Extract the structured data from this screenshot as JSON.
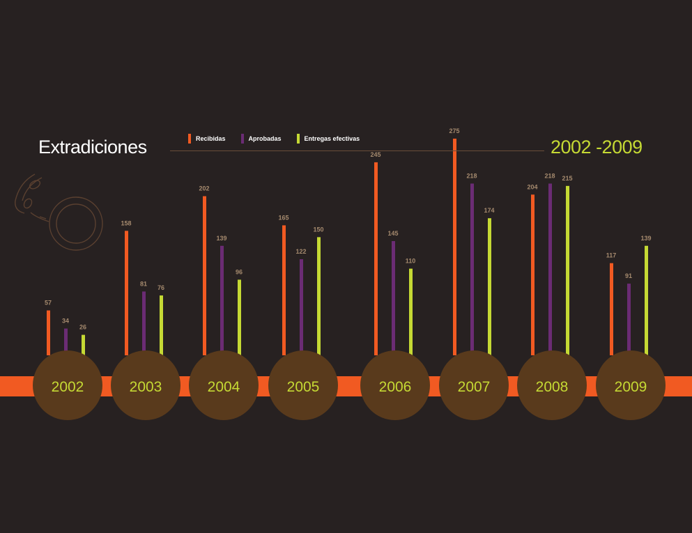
{
  "header": {
    "title": "Extradiciones",
    "range": "2002 -2009"
  },
  "legend": [
    {
      "label": "Recibidas",
      "color": "#f15a22"
    },
    {
      "label": "Aprobadas",
      "color": "#6b2c74"
    },
    {
      "label": "Entregas efectivas",
      "color": "#c5d934"
    }
  ],
  "colors": {
    "background": "#272121",
    "timeline": "#f15a22",
    "year_circle": "#593a1c",
    "year_text": "#c5d934",
    "value_label": "#a58a6e",
    "handcuff_icon": "#5a4030"
  },
  "chart_data": {
    "type": "bar",
    "title": "Extradiciones 2002 -2009",
    "categories": [
      "2002",
      "2003",
      "2004",
      "2005",
      "2006",
      "2007",
      "2008",
      "2009"
    ],
    "series": [
      {
        "name": "Recibidas",
        "values": [
          57,
          158,
          202,
          165,
          245,
          275,
          204,
          117
        ]
      },
      {
        "name": "Aprobadas",
        "values": [
          34,
          81,
          139,
          122,
          145,
          218,
          218,
          91
        ]
      },
      {
        "name": "Entregas efectivas",
        "values": [
          26,
          76,
          96,
          150,
          110,
          174,
          215,
          139
        ]
      }
    ],
    "xlabel": "",
    "ylabel": "",
    "ylim": [
      0,
      275
    ],
    "grid": false,
    "legend_position": "top"
  }
}
